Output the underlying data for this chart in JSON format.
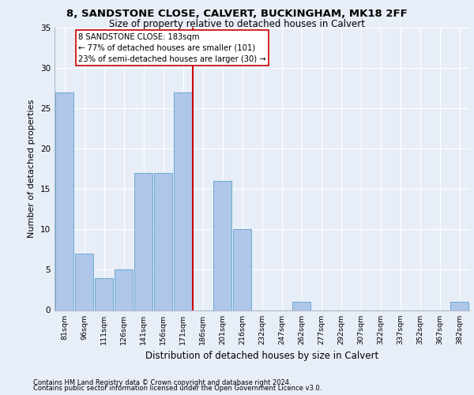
{
  "title1": "8, SANDSTONE CLOSE, CALVERT, BUCKINGHAM, MK18 2FF",
  "title2": "Size of property relative to detached houses in Calvert",
  "xlabel": "Distribution of detached houses by size in Calvert",
  "ylabel": "Number of detached properties",
  "categories": [
    "81sqm",
    "96sqm",
    "111sqm",
    "126sqm",
    "141sqm",
    "156sqm",
    "171sqm",
    "186sqm",
    "201sqm",
    "216sqm",
    "232sqm",
    "247sqm",
    "262sqm",
    "277sqm",
    "292sqm",
    "307sqm",
    "322sqm",
    "337sqm",
    "352sqm",
    "367sqm",
    "382sqm"
  ],
  "values": [
    27,
    7,
    4,
    5,
    17,
    17,
    27,
    0,
    16,
    10,
    0,
    0,
    1,
    0,
    0,
    0,
    0,
    0,
    0,
    0,
    1
  ],
  "bar_color": "#aec6e8",
  "bar_edge_color": "#6aaad4",
  "annotation_line1": "8 SANDSTONE CLOSE: 183sqm",
  "annotation_line2": "← 77% of detached houses are smaller (101)",
  "annotation_line3": "23% of semi-detached houses are larger (30) →",
  "vline_color": "#cc0000",
  "annotation_box_facecolor": "#ffffff",
  "annotation_box_edgecolor": "#cc0000",
  "ylim": [
    0,
    35
  ],
  "yticks": [
    0,
    5,
    10,
    15,
    20,
    25,
    30,
    35
  ],
  "footer1": "Contains HM Land Registry data © Crown copyright and database right 2024.",
  "footer2": "Contains public sector information licensed under the Open Government Licence v3.0.",
  "bg_color": "#e8eef7"
}
